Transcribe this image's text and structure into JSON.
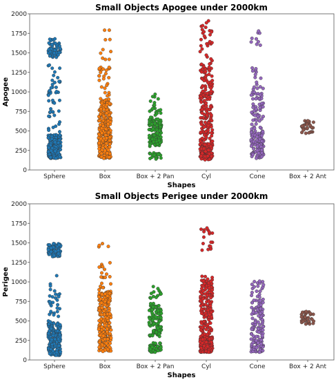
{
  "chart_data": [
    {
      "type": "scatter",
      "subtype": "strip",
      "title": "Small Objects Apogee under 2000km",
      "xlabel": "Shapes",
      "ylabel": "Apogee",
      "categories": [
        "Sphere",
        "Box",
        "Box + 2 Pan",
        "Cyl",
        "Cone",
        "Box + 2 Ant"
      ],
      "ylim": [
        0,
        2000
      ],
      "yticks": [
        "0",
        "250",
        "500",
        "750",
        "1000",
        "1250",
        "1500",
        "1750",
        "2000"
      ],
      "grid": false,
      "series": [
        {
          "category": "Sphere",
          "color": "#1f77b4",
          "count": 320,
          "min": 150,
          "max": 1680,
          "clusters": [
            [
              150,
              450,
              0.65
            ],
            [
              480,
              1000,
              0.09
            ],
            [
              1000,
              1350,
              0.06
            ],
            [
              1440,
              1560,
              0.15
            ],
            [
              1560,
              1680,
              0.05
            ]
          ]
        },
        {
          "category": "Box",
          "color": "#ff7f0e",
          "count": 300,
          "min": 150,
          "max": 1790,
          "clusters": [
            [
              150,
              550,
              0.55
            ],
            [
              550,
              900,
              0.33
            ],
            [
              900,
              1330,
              0.09
            ],
            [
              1400,
              1790,
              0.03
            ]
          ]
        },
        {
          "category": "Box + 2 Pan",
          "color": "#2ca02c",
          "count": 160,
          "min": 140,
          "max": 970,
          "clusters": [
            [
              140,
              220,
              0.14
            ],
            [
              300,
              650,
              0.72
            ],
            [
              650,
              970,
              0.14
            ]
          ]
        },
        {
          "category": "Cyl",
          "color": "#d62728",
          "count": 330,
          "min": 130,
          "max": 1910,
          "clusters": [
            [
              130,
              350,
              0.4
            ],
            [
              350,
              1000,
              0.38
            ],
            [
              1000,
              1500,
              0.15
            ],
            [
              1500,
              1910,
              0.07
            ]
          ]
        },
        {
          "category": "Cone",
          "color": "#9467bd",
          "count": 190,
          "min": 150,
          "max": 1780,
          "clusters": [
            [
              150,
              500,
              0.58
            ],
            [
              500,
              1000,
              0.3
            ],
            [
              1000,
              1320,
              0.08
            ],
            [
              1550,
              1780,
              0.04
            ]
          ]
        },
        {
          "category": "Box + 2 Ant",
          "color": "#8c564b",
          "count": 30,
          "min": 470,
          "max": 630,
          "clusters": [
            [
              470,
              630,
              1.0
            ]
          ]
        }
      ]
    },
    {
      "type": "scatter",
      "subtype": "strip",
      "title": "Small Objects Perigee under 2000km",
      "xlabel": "Shapes",
      "ylabel": "Perigee",
      "categories": [
        "Sphere",
        "Box",
        "Box + 2 Pan",
        "Cyl",
        "Cone",
        "Box + 2 Ant"
      ],
      "ylim": [
        0,
        2000
      ],
      "yticks": [
        "0",
        "250",
        "500",
        "750",
        "1000",
        "1250",
        "1500",
        "1750",
        "2000"
      ],
      "grid": false,
      "series": [
        {
          "category": "Sphere",
          "color": "#1f77b4",
          "count": 300,
          "min": 60,
          "max": 1490,
          "clusters": [
            [
              60,
              480,
              0.62
            ],
            [
              480,
              1080,
              0.1
            ],
            [
              1320,
              1490,
              0.28
            ]
          ]
        },
        {
          "category": "Box",
          "color": "#ff7f0e",
          "count": 290,
          "min": 110,
          "max": 1490,
          "clusters": [
            [
              110,
              500,
              0.5
            ],
            [
              500,
              880,
              0.42
            ],
            [
              880,
              1280,
              0.07
            ],
            [
              1440,
              1490,
              0.01
            ]
          ]
        },
        {
          "category": "Box + 2 Pan",
          "color": "#2ca02c",
          "count": 170,
          "min": 100,
          "max": 940,
          "clusters": [
            [
              100,
              220,
              0.28
            ],
            [
              300,
              700,
              0.64
            ],
            [
              700,
              940,
              0.08
            ]
          ]
        },
        {
          "category": "Cyl",
          "color": "#d62728",
          "count": 330,
          "min": 100,
          "max": 1690,
          "clusters": [
            [
              100,
              300,
              0.5
            ],
            [
              300,
              1080,
              0.45
            ],
            [
              1380,
              1690,
              0.05
            ]
          ]
        },
        {
          "category": "Cone",
          "color": "#9467bd",
          "count": 160,
          "min": 100,
          "max": 1010,
          "clusters": [
            [
              100,
              250,
              0.3
            ],
            [
              250,
              700,
              0.52
            ],
            [
              700,
              1010,
              0.18
            ]
          ]
        },
        {
          "category": "Box + 2 Ant",
          "color": "#8c564b",
          "count": 30,
          "min": 460,
          "max": 620,
          "clusters": [
            [
              460,
              620,
              1.0
            ]
          ]
        }
      ]
    }
  ]
}
